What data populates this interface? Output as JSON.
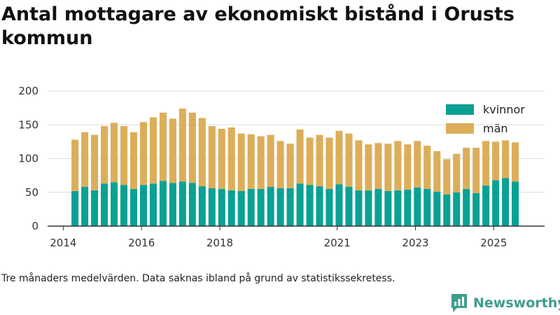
{
  "title": "Antal mottagare av ekonomiskt bistånd i Orusts kommun",
  "footnote": "Tre månaders medelvärden. Data saknas ibland på grund av statistikssekretess.",
  "brand": {
    "name": "Newsworthy",
    "logo_icon": "newsworthy-logo-icon"
  },
  "colors": {
    "kvinnor": "#0aa195",
    "man": "#dcae5a",
    "background": "#ffffff"
  },
  "chart_data": {
    "type": "bar",
    "stacked": true,
    "title": "Antal mottagare av ekonomiskt bistånd i Orusts kommun",
    "xlabel": "",
    "ylabel": "",
    "ylim": [
      0,
      200
    ],
    "yticks": [
      0,
      50,
      100,
      150,
      200
    ],
    "xlim": [
      2013.6,
      2026.3
    ],
    "xticks": [
      2014,
      2016,
      2018,
      2021,
      2023,
      2025
    ],
    "grid": true,
    "legend_position": "top-right",
    "x": [
      2014.3,
      2014.55,
      2014.8,
      2015.05,
      2015.3,
      2015.55,
      2015.8,
      2016.05,
      2016.3,
      2016.55,
      2016.8,
      2017.05,
      2017.3,
      2017.55,
      2017.8,
      2018.05,
      2018.3,
      2018.55,
      2018.8,
      2019.05,
      2019.3,
      2019.55,
      2019.8,
      2020.05,
      2020.3,
      2020.55,
      2020.8,
      2021.05,
      2021.3,
      2021.55,
      2021.8,
      2022.05,
      2022.3,
      2022.55,
      2022.8,
      2023.05,
      2023.3,
      2023.55,
      2023.8,
      2024.05,
      2024.3,
      2024.55,
      2024.8,
      2025.05,
      2025.3,
      2025.55
    ],
    "series": [
      {
        "name": "kvinnor",
        "values": [
          52,
          58,
          53,
          63,
          65,
          61,
          55,
          61,
          63,
          67,
          64,
          66,
          64,
          59,
          56,
          55,
          53,
          52,
          55,
          55,
          58,
          56,
          56,
          63,
          61,
          59,
          55,
          62,
          58,
          53,
          53,
          55,
          52,
          53,
          54,
          57,
          55,
          51,
          47,
          50,
          55,
          49,
          60,
          68,
          71,
          66
        ]
      },
      {
        "name": "män",
        "values": [
          76,
          81,
          82,
          85,
          88,
          87,
          84,
          93,
          98,
          101,
          95,
          108,
          104,
          101,
          92,
          89,
          93,
          85,
          81,
          78,
          77,
          70,
          66,
          80,
          70,
          76,
          76,
          79,
          79,
          74,
          68,
          68,
          70,
          73,
          67,
          69,
          64,
          60,
          52,
          57,
          61,
          67,
          66,
          57,
          56,
          58
        ]
      }
    ]
  }
}
